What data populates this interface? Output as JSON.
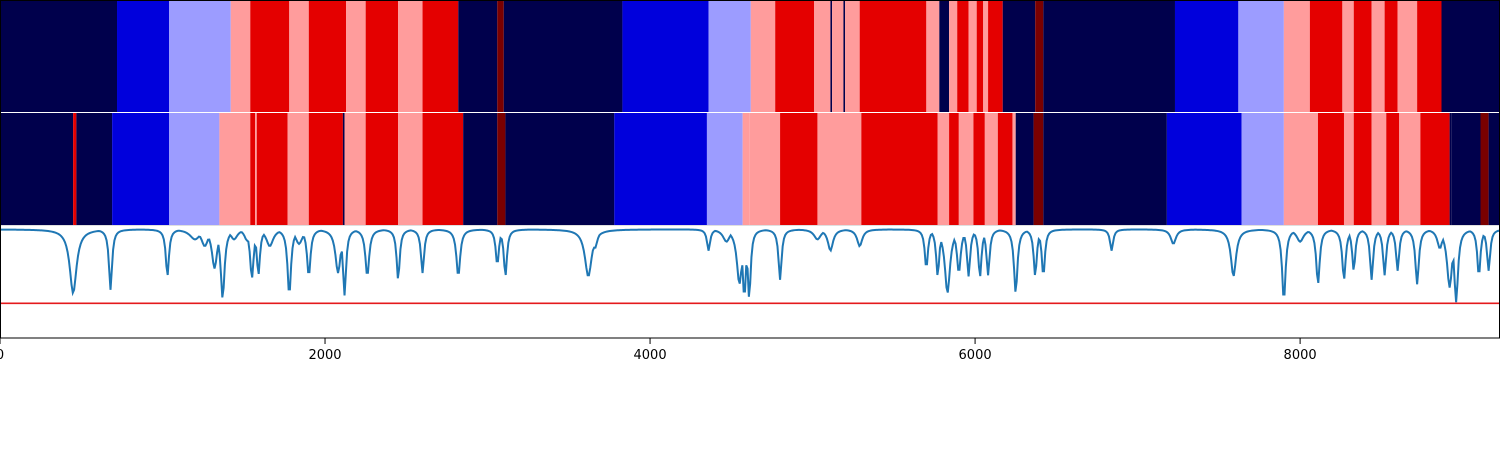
{
  "chart_data": {
    "type": "heatmap",
    "xlim": [
      0,
      9230
    ],
    "x_ticks": [
      {
        "value": 0,
        "label": "0"
      },
      {
        "value": 2000,
        "label": "2000"
      },
      {
        "value": 4000,
        "label": "4000"
      },
      {
        "value": 6000,
        "label": "6000"
      },
      {
        "value": 8000,
        "label": "8000"
      }
    ],
    "palette": {
      "0": "#00004c",
      "1": "#0000dc",
      "2": "#9c9cff",
      "3": "#ff9c9c",
      "4": "#e40000",
      "5": "#7a0000"
    },
    "line_color": "#1f77b4",
    "threshold_color": "#e41a1c",
    "tracks": [
      {
        "segments": [
          [
            0,
            720,
            0
          ],
          [
            720,
            1040,
            1
          ],
          [
            1040,
            1420,
            2
          ],
          [
            1420,
            1540,
            3
          ],
          [
            1540,
            1780,
            4
          ],
          [
            1780,
            1900,
            3
          ],
          [
            1900,
            2130,
            4
          ],
          [
            2130,
            2250,
            3
          ],
          [
            2250,
            2450,
            4
          ],
          [
            2450,
            2600,
            3
          ],
          [
            2600,
            2820,
            4
          ],
          [
            2820,
            3060,
            0
          ],
          [
            3060,
            3100,
            5
          ],
          [
            3100,
            3830,
            0
          ],
          [
            3830,
            4360,
            1
          ],
          [
            4360,
            4620,
            2
          ],
          [
            4620,
            4770,
            3
          ],
          [
            4770,
            5010,
            4
          ],
          [
            5010,
            5110,
            3
          ],
          [
            5110,
            5120,
            0
          ],
          [
            5120,
            5190,
            3
          ],
          [
            5190,
            5200,
            0
          ],
          [
            5200,
            5290,
            3
          ],
          [
            5290,
            5700,
            4
          ],
          [
            5700,
            5780,
            3
          ],
          [
            5780,
            5840,
            0
          ],
          [
            5840,
            5890,
            3
          ],
          [
            5890,
            5960,
            4
          ],
          [
            5960,
            6010,
            3
          ],
          [
            6010,
            6050,
            4
          ],
          [
            6050,
            6080,
            3
          ],
          [
            6080,
            6170,
            4
          ],
          [
            6170,
            6370,
            0
          ],
          [
            6370,
            6420,
            5
          ],
          [
            6420,
            7230,
            0
          ],
          [
            7230,
            7620,
            1
          ],
          [
            7620,
            7900,
            2
          ],
          [
            7900,
            8060,
            3
          ],
          [
            8060,
            8260,
            4
          ],
          [
            8260,
            8330,
            3
          ],
          [
            8330,
            8440,
            4
          ],
          [
            8440,
            8520,
            3
          ],
          [
            8520,
            8600,
            4
          ],
          [
            8600,
            8720,
            3
          ],
          [
            8720,
            8870,
            4
          ],
          [
            8870,
            9230,
            0
          ]
        ]
      },
      {
        "segments": [
          [
            0,
            450,
            0
          ],
          [
            450,
            470,
            4
          ],
          [
            470,
            690,
            0
          ],
          [
            690,
            1040,
            1
          ],
          [
            1040,
            1350,
            2
          ],
          [
            1350,
            1540,
            3
          ],
          [
            1540,
            1570,
            4
          ],
          [
            1570,
            1580,
            3
          ],
          [
            1580,
            1770,
            4
          ],
          [
            1770,
            1900,
            3
          ],
          [
            1900,
            2110,
            4
          ],
          [
            2110,
            2120,
            0
          ],
          [
            2120,
            2250,
            3
          ],
          [
            2250,
            2450,
            4
          ],
          [
            2450,
            2600,
            3
          ],
          [
            2600,
            2850,
            4
          ],
          [
            2850,
            3060,
            0
          ],
          [
            3060,
            3110,
            5
          ],
          [
            3110,
            3780,
            0
          ],
          [
            3780,
            4350,
            1
          ],
          [
            4350,
            4570,
            2
          ],
          [
            4570,
            4610,
            3
          ],
          [
            4610,
            4800,
            3
          ],
          [
            4800,
            5030,
            4
          ],
          [
            5030,
            5300,
            3
          ],
          [
            5300,
            5770,
            4
          ],
          [
            5770,
            5840,
            3
          ],
          [
            5840,
            5900,
            4
          ],
          [
            5900,
            5990,
            3
          ],
          [
            5990,
            6060,
            4
          ],
          [
            6060,
            6140,
            3
          ],
          [
            6140,
            6230,
            4
          ],
          [
            6230,
            6250,
            3
          ],
          [
            6250,
            6360,
            0
          ],
          [
            6360,
            6420,
            5
          ],
          [
            6420,
            7180,
            0
          ],
          [
            7180,
            7640,
            1
          ],
          [
            7640,
            7900,
            2
          ],
          [
            7900,
            8110,
            3
          ],
          [
            8110,
            8270,
            4
          ],
          [
            8270,
            8330,
            3
          ],
          [
            8330,
            8440,
            4
          ],
          [
            8440,
            8530,
            3
          ],
          [
            8530,
            8610,
            4
          ],
          [
            8610,
            8740,
            3
          ],
          [
            8740,
            8920,
            4
          ],
          [
            8920,
            8930,
            0
          ],
          [
            8930,
            9110,
            0
          ],
          [
            9110,
            9160,
            5
          ],
          [
            9160,
            9230,
            0
          ]
        ]
      }
    ],
    "line_panel": {
      "ylim": [
        0,
        1
      ],
      "baseline": 0.97,
      "threshold": 0.31,
      "dips": [
        [
          450,
          0.4,
          40
        ],
        [
          680,
          0.43,
          18
        ],
        [
          1030,
          0.55,
          18
        ],
        [
          1200,
          0.88,
          60
        ],
        [
          1260,
          0.82,
          40
        ],
        [
          1320,
          0.62,
          30
        ],
        [
          1370,
          0.35,
          22
        ],
        [
          1440,
          0.88,
          40
        ],
        [
          1520,
          0.87,
          30
        ],
        [
          1550,
          0.53,
          20
        ],
        [
          1590,
          0.56,
          18
        ],
        [
          1660,
          0.82,
          40
        ],
        [
          1780,
          0.38,
          20
        ],
        [
          1840,
          0.84,
          40
        ],
        [
          1900,
          0.55,
          20
        ],
        [
          2080,
          0.58,
          30
        ],
        [
          2120,
          0.38,
          18
        ],
        [
          2260,
          0.55,
          22
        ],
        [
          2450,
          0.52,
          18
        ],
        [
          2600,
          0.58,
          18
        ],
        [
          2820,
          0.55,
          22
        ],
        [
          3060,
          0.65,
          18
        ],
        [
          3110,
          0.55,
          18
        ],
        [
          3620,
          0.55,
          40
        ],
        [
          3660,
          0.8,
          30
        ],
        [
          4360,
          0.78,
          18
        ],
        [
          4470,
          0.86,
          40
        ],
        [
          4550,
          0.48,
          30
        ],
        [
          4580,
          0.36,
          20
        ],
        [
          4610,
          0.35,
          18
        ],
        [
          4800,
          0.52,
          18
        ],
        [
          5030,
          0.88,
          40
        ],
        [
          5110,
          0.78,
          30
        ],
        [
          5290,
          0.82,
          30
        ],
        [
          5700,
          0.62,
          18
        ],
        [
          5770,
          0.55,
          18
        ],
        [
          5830,
          0.4,
          30
        ],
        [
          5900,
          0.58,
          22
        ],
        [
          5960,
          0.55,
          18
        ],
        [
          6030,
          0.54,
          18
        ],
        [
          6080,
          0.56,
          18
        ],
        [
          6250,
          0.4,
          20
        ],
        [
          6370,
          0.55,
          18
        ],
        [
          6420,
          0.55,
          18
        ],
        [
          6840,
          0.78,
          18
        ],
        [
          7220,
          0.84,
          30
        ],
        [
          7590,
          0.55,
          30
        ],
        [
          7900,
          0.33,
          20
        ],
        [
          8000,
          0.86,
          40
        ],
        [
          8110,
          0.48,
          20
        ],
        [
          8270,
          0.52,
          20
        ],
        [
          8330,
          0.6,
          18
        ],
        [
          8440,
          0.52,
          18
        ],
        [
          8520,
          0.56,
          18
        ],
        [
          8600,
          0.6,
          18
        ],
        [
          8720,
          0.48,
          20
        ],
        [
          8860,
          0.8,
          30
        ],
        [
          8920,
          0.45,
          30
        ],
        [
          8960,
          0.32,
          22
        ],
        [
          9100,
          0.55,
          18
        ],
        [
          9160,
          0.6,
          18
        ]
      ]
    }
  }
}
